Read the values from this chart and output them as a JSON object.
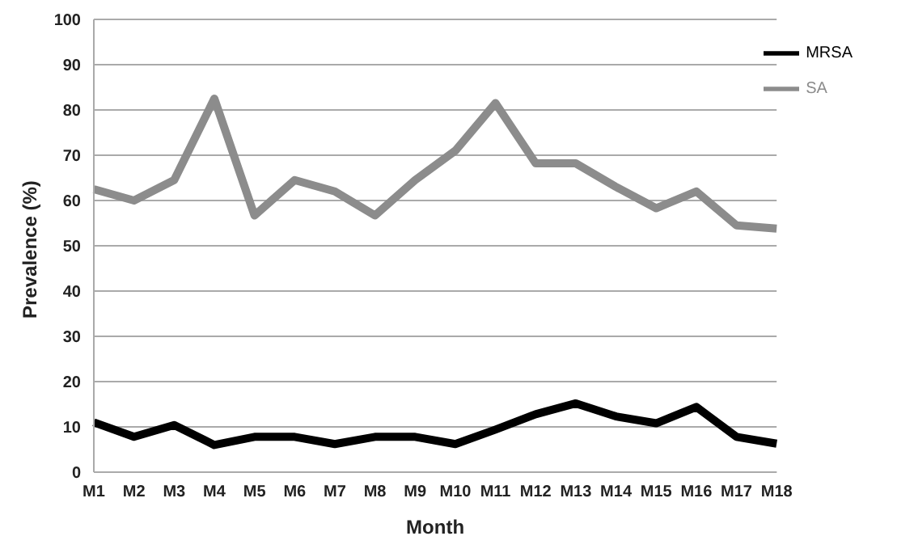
{
  "chart_data": {
    "type": "line",
    "xlabel": "Month",
    "ylabel": "Prevalence (%)",
    "categories": [
      "M1",
      "M2",
      "M3",
      "M4",
      "M5",
      "M6",
      "M7",
      "M8",
      "M9",
      "M10",
      "M11",
      "M12",
      "M13",
      "M14",
      "M15",
      "M16",
      "M17",
      "M18"
    ],
    "series": [
      {
        "name": "SA",
        "color": "#8c8c8c",
        "values": [
          62.5,
          60,
          64.5,
          82.5,
          56.7,
          64.5,
          62,
          56.7,
          64.5,
          71,
          81.5,
          68.2,
          68.2,
          63,
          58.3,
          62,
          54.5,
          53.8
        ]
      },
      {
        "name": "MRSA",
        "color": "#000000",
        "values": [
          11,
          7.8,
          10.4,
          6,
          7.8,
          7.8,
          6.2,
          7.8,
          7.8,
          6.2,
          9.4,
          12.8,
          15.2,
          12.3,
          10.8,
          14.4,
          7.8,
          6.3
        ]
      }
    ],
    "ylim": [
      0,
      100
    ],
    "yticks": [
      0,
      10,
      20,
      30,
      40,
      50,
      60,
      70,
      80,
      90,
      100
    ],
    "grid": "y",
    "legend": "top right",
    "marker": "none",
    "line_style": "solid"
  }
}
